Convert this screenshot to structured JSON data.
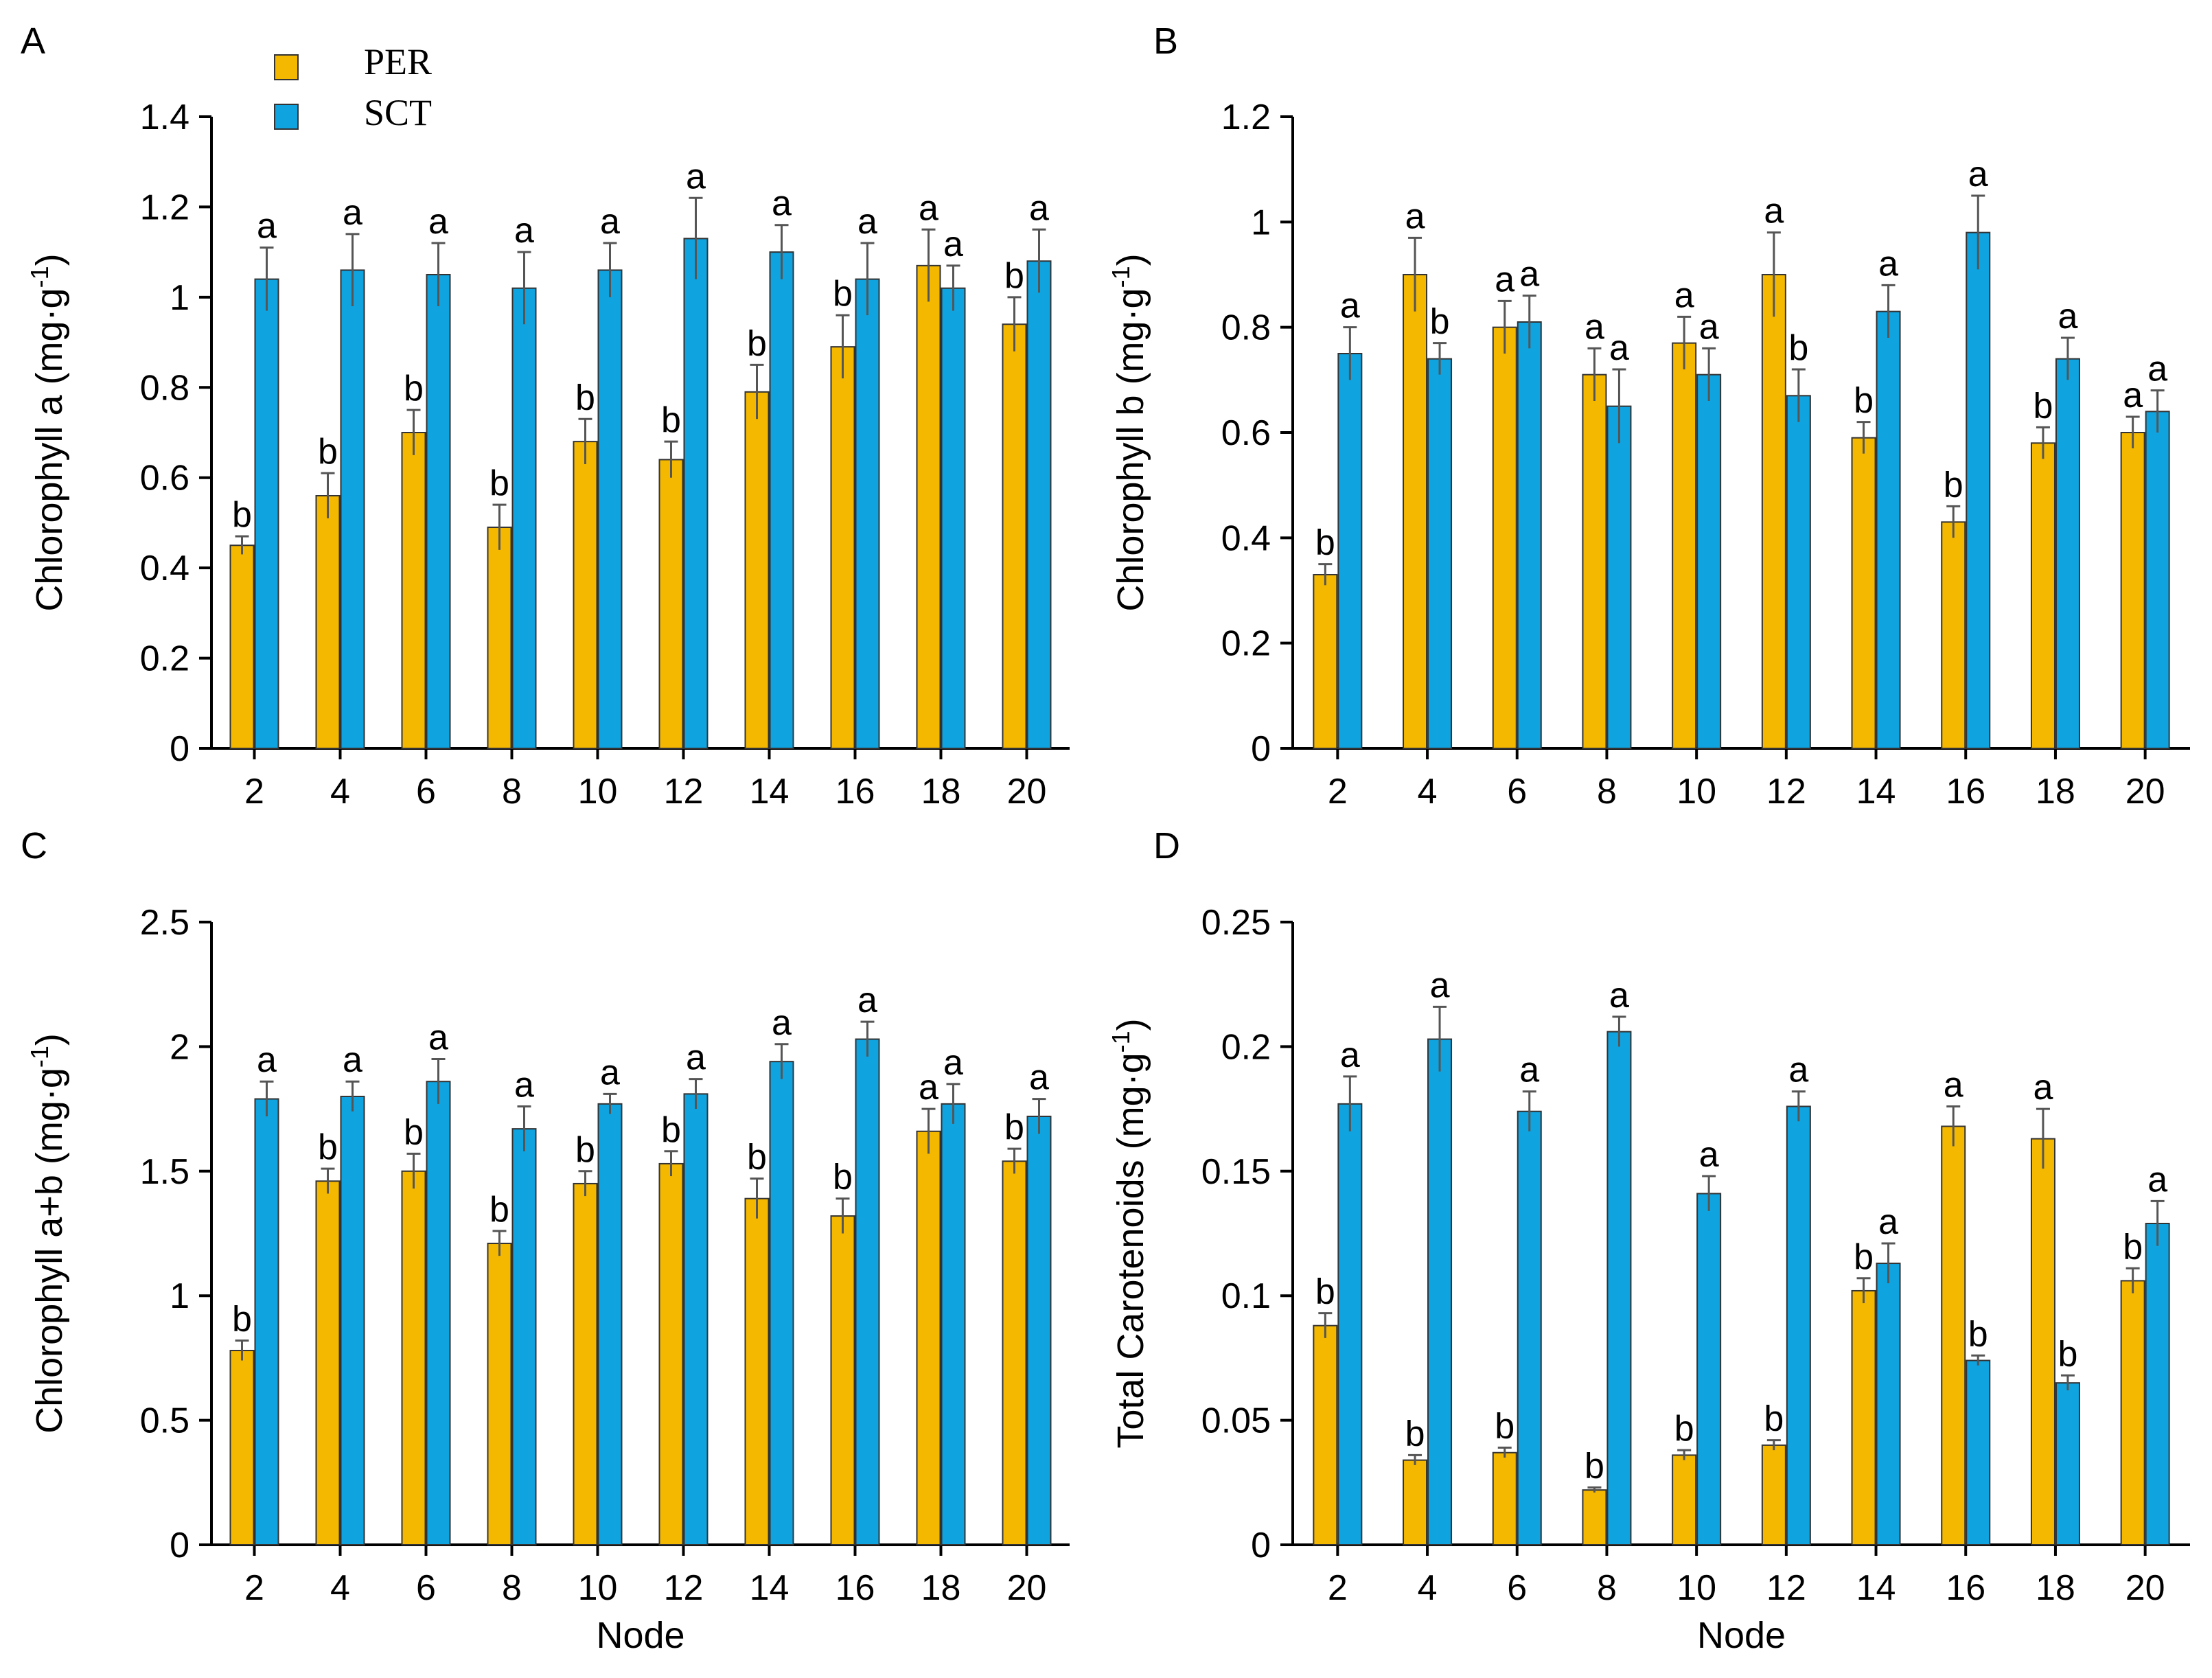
{
  "legend": {
    "items": [
      {
        "label": "PER",
        "color": "#F5B800"
      },
      {
        "label": "SCT",
        "color": "#0FA3E0"
      }
    ]
  },
  "colors": {
    "per": "#F5B800",
    "sct": "#0FA3E0",
    "axis": "#000000",
    "error": "#555555"
  },
  "chart_data": [
    {
      "panel_label": "A",
      "type": "bar",
      "title": "",
      "xlabel": "",
      "ylabel": "Chlorophyll a (mg·g",
      "ylabel_sup": "-1",
      "ylabel_close": ")",
      "categories": [
        "2",
        "4",
        "6",
        "8",
        "10",
        "12",
        "14",
        "16",
        "18",
        "20"
      ],
      "ylim": [
        0,
        1.4
      ],
      "yticks": [
        "0",
        "0.2",
        "0.4",
        "0.6",
        "0.8",
        "1",
        "1.2",
        "1.4"
      ],
      "series": [
        {
          "name": "PER",
          "values": [
            0.45,
            0.56,
            0.7,
            0.49,
            0.68,
            0.64,
            0.79,
            0.89,
            1.07,
            0.94
          ],
          "errors": [
            0.02,
            0.05,
            0.05,
            0.05,
            0.05,
            0.04,
            0.06,
            0.07,
            0.08,
            0.06
          ],
          "letters": [
            "b",
            "b",
            "b",
            "b",
            "b",
            "b",
            "b",
            "b",
            "a",
            "b"
          ]
        },
        {
          "name": "SCT",
          "values": [
            1.04,
            1.06,
            1.05,
            1.02,
            1.06,
            1.13,
            1.1,
            1.04,
            1.02,
            1.08
          ],
          "errors": [
            0.07,
            0.08,
            0.07,
            0.08,
            0.06,
            0.09,
            0.06,
            0.08,
            0.05,
            0.07
          ],
          "letters": [
            "a",
            "a",
            "a",
            "a",
            "a",
            "a",
            "a",
            "a",
            "a",
            "a"
          ]
        }
      ]
    },
    {
      "panel_label": "B",
      "type": "bar",
      "title": "",
      "xlabel": "",
      "ylabel": "Chlorophyll b (mg·g",
      "ylabel_sup": "-1",
      "ylabel_close": ")",
      "categories": [
        "2",
        "4",
        "6",
        "8",
        "10",
        "12",
        "14",
        "16",
        "18",
        "20"
      ],
      "ylim": [
        0,
        1.2
      ],
      "yticks": [
        "0",
        "0.2",
        "0.4",
        "0.6",
        "0.8",
        "1",
        "1.2"
      ],
      "series": [
        {
          "name": "PER",
          "values": [
            0.33,
            0.9,
            0.8,
            0.71,
            0.77,
            0.9,
            0.59,
            0.43,
            0.58,
            0.6
          ],
          "errors": [
            0.02,
            0.07,
            0.05,
            0.05,
            0.05,
            0.08,
            0.03,
            0.03,
            0.03,
            0.03
          ],
          "letters": [
            "b",
            "a",
            "a",
            "a",
            "a",
            "a",
            "b",
            "b",
            "b",
            "a"
          ]
        },
        {
          "name": "SCT",
          "values": [
            0.75,
            0.74,
            0.81,
            0.65,
            0.71,
            0.67,
            0.83,
            0.98,
            0.74,
            0.64
          ],
          "errors": [
            0.05,
            0.03,
            0.05,
            0.07,
            0.05,
            0.05,
            0.05,
            0.07,
            0.04,
            0.04
          ],
          "letters": [
            "a",
            "b",
            "a",
            "a",
            "a",
            "b",
            "a",
            "a",
            "a",
            "a"
          ]
        }
      ]
    },
    {
      "panel_label": "C",
      "type": "bar",
      "title": "",
      "xlabel": "Node",
      "ylabel": "Chlorophyll a+b (mg·g",
      "ylabel_sup": "-1",
      "ylabel_close": ")",
      "categories": [
        "2",
        "4",
        "6",
        "8",
        "10",
        "12",
        "14",
        "16",
        "18",
        "20"
      ],
      "ylim": [
        0,
        2.5
      ],
      "yticks": [
        "0",
        "0.5",
        "1",
        "1.5",
        "2",
        "2.5"
      ],
      "series": [
        {
          "name": "PER",
          "values": [
            0.78,
            1.46,
            1.5,
            1.21,
            1.45,
            1.53,
            1.39,
            1.32,
            1.66,
            1.54
          ],
          "errors": [
            0.04,
            0.05,
            0.07,
            0.05,
            0.05,
            0.05,
            0.08,
            0.07,
            0.09,
            0.05
          ],
          "letters": [
            "b",
            "b",
            "b",
            "b",
            "b",
            "b",
            "b",
            "b",
            "a",
            "b"
          ]
        },
        {
          "name": "SCT",
          "values": [
            1.79,
            1.8,
            1.86,
            1.67,
            1.77,
            1.81,
            1.94,
            2.03,
            1.77,
            1.72
          ],
          "errors": [
            0.07,
            0.06,
            0.09,
            0.09,
            0.04,
            0.06,
            0.07,
            0.07,
            0.08,
            0.07
          ],
          "letters": [
            "a",
            "a",
            "a",
            "a",
            "a",
            "a",
            "a",
            "a",
            "a",
            "a"
          ]
        }
      ]
    },
    {
      "panel_label": "D",
      "type": "bar",
      "title": "",
      "xlabel": "Node",
      "ylabel": "Total Carotenoids (mg·g",
      "ylabel_sup": "-1",
      "ylabel_close": ")",
      "categories": [
        "2",
        "4",
        "6",
        "8",
        "10",
        "12",
        "14",
        "16",
        "18",
        "20"
      ],
      "ylim": [
        0,
        0.25
      ],
      "yticks": [
        "0",
        "0.05",
        "0.1",
        "0.15",
        "0.2",
        "0.25"
      ],
      "series": [
        {
          "name": "PER",
          "values": [
            0.088,
            0.034,
            0.037,
            0.022,
            0.036,
            0.04,
            0.102,
            0.168,
            0.163,
            0.106
          ],
          "errors": [
            0.005,
            0.002,
            0.002,
            0.001,
            0.002,
            0.002,
            0.005,
            0.008,
            0.012,
            0.005
          ],
          "letters": [
            "b",
            "b",
            "b",
            "b",
            "b",
            "b",
            "b",
            "a",
            "a",
            "b"
          ]
        },
        {
          "name": "SCT",
          "values": [
            0.177,
            0.203,
            0.174,
            0.206,
            0.141,
            0.176,
            0.113,
            0.074,
            0.065,
            0.129
          ],
          "errors": [
            0.011,
            0.013,
            0.008,
            0.006,
            0.007,
            0.006,
            0.008,
            0.002,
            0.003,
            0.009
          ],
          "letters": [
            "a",
            "a",
            "a",
            "a",
            "a",
            "a",
            "a",
            "b",
            "b",
            "a"
          ]
        }
      ]
    }
  ]
}
